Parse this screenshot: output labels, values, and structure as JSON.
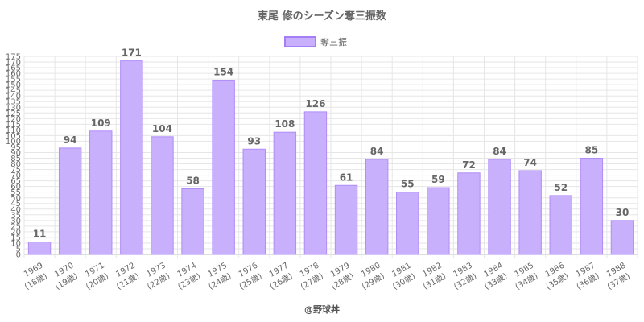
{
  "chart_data": {
    "type": "bar",
    "title": "東尾 修のシーズン奪三振数",
    "categories": [
      "1969",
      "1970",
      "1971",
      "1972",
      "1973",
      "1974",
      "1975",
      "1976",
      "1977",
      "1978",
      "1979",
      "1980",
      "1981",
      "1982",
      "1983",
      "1984",
      "1985",
      "1986",
      "1987",
      "1988"
    ],
    "category_sublabels": [
      "(18歳)",
      "(19歳)",
      "(20歳)",
      "(21歳)",
      "(22歳)",
      "(23歳)",
      "(24歳)",
      "(25歳)",
      "(26歳)",
      "(27歳)",
      "(28歳)",
      "(29歳)",
      "(30歳)",
      "(31歳)",
      "(32歳)",
      "(33歳)",
      "(34歳)",
      "(35歳)",
      "(36歳)",
      "(37歳)"
    ],
    "series": [
      {
        "name": "奪三振",
        "values": [
          11,
          94,
          109,
          171,
          104,
          58,
          154,
          93,
          108,
          126,
          61,
          84,
          55,
          59,
          72,
          84,
          74,
          52,
          85,
          30
        ],
        "color": "#c9b0fc",
        "border_color": "#b08cf9"
      }
    ],
    "xlabel": "",
    "ylabel": "",
    "ylim": [
      0,
      175
    ],
    "y_step": 5,
    "y_tick_labels_every": 10,
    "grid": true,
    "legend_position": "top-center",
    "data_labels": true,
    "credit": "@野球丼"
  }
}
